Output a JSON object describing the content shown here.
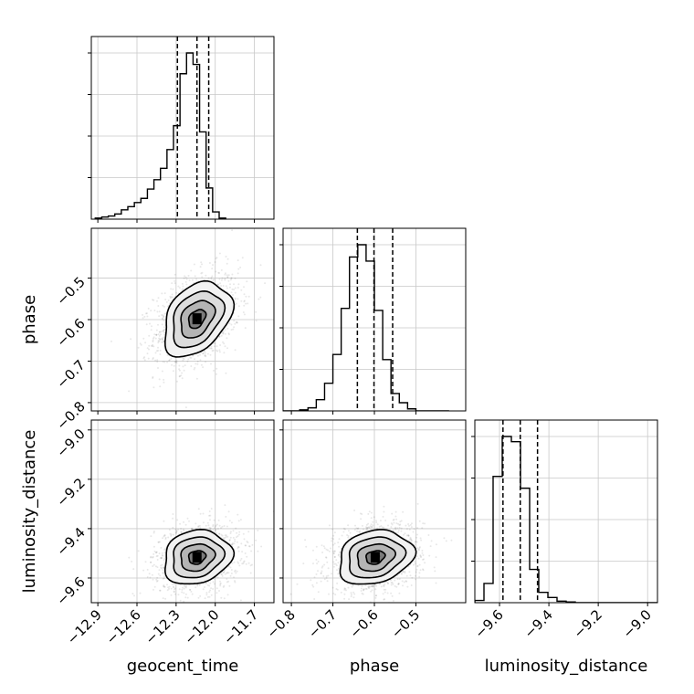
{
  "chart_data": {
    "type": "corner",
    "parameters": [
      "geocent_time",
      "phase",
      "luminosity_distance"
    ],
    "axis_labels": [
      "geocent_time",
      "phase",
      "luminosity_distance"
    ],
    "ranges": {
      "geocent_time": [
        -12.95,
        -11.55
      ],
      "phase": [
        -0.82,
        -0.38
      ],
      "luminosity_distance": [
        -9.7,
        -8.96
      ]
    },
    "ticks": {
      "geocent_time": [
        -12.9,
        -12.6,
        -12.3,
        -12.0,
        -11.7
      ],
      "phase": [
        -0.8,
        -0.7,
        -0.6,
        -0.5
      ],
      "luminosity_distance": [
        -9.6,
        -9.4,
        -9.2,
        -9.0
      ]
    },
    "tick_labels": {
      "geocent_time": [
        "−12.9",
        "−12.6",
        "−12.3",
        "−12.0",
        "−11.7"
      ],
      "phase": [
        "−0.8",
        "−0.7",
        "−0.6",
        "−0.5"
      ],
      "luminosity_distance": [
        "−9.6",
        "−9.4",
        "−9.2",
        "−9.0"
      ]
    },
    "histograms": {
      "geocent_time": {
        "bin_start": -12.92,
        "bin_width": 0.05,
        "counts": [
          1,
          2,
          3,
          5,
          9,
          12,
          16,
          20,
          29,
          38,
          49,
          67,
          90,
          140,
          160,
          149,
          84,
          30,
          7,
          1
        ]
      },
      "phase": {
        "bin_start": -0.82,
        "bin_width": 0.02,
        "counts": [
          0,
          0,
          1,
          3,
          11,
          27,
          55,
          100,
          150,
          162,
          146,
          98,
          50,
          17,
          8,
          2,
          0,
          0,
          0,
          0
        ]
      },
      "luminosity_distance": {
        "bin_start": -9.7,
        "bin_width": 0.037,
        "counts": [
          3,
          26,
          171,
          225,
          218,
          155,
          45,
          14,
          7,
          2,
          1,
          0,
          0,
          0,
          0,
          0,
          0,
          0,
          0,
          0
        ]
      }
    },
    "quantiles": {
      "geocent_time": [
        -12.29,
        -12.14,
        -12.05
      ],
      "phase": [
        -0.641,
        -0.601,
        -0.556
      ],
      "luminosity_distance": [
        -9.586,
        -9.516,
        -9.446
      ]
    },
    "joint": [
      {
        "x": "geocent_time",
        "y": "phase",
        "mean": [
          -12.14,
          -0.598
        ],
        "sd": [
          0.13,
          0.045
        ],
        "rho": 0.35
      },
      {
        "x": "geocent_time",
        "y": "luminosity_distance",
        "mean": [
          -12.14,
          -9.516
        ],
        "sd": [
          0.13,
          0.055
        ],
        "rho": 0.15
      },
      {
        "x": "phase",
        "y": "luminosity_distance",
        "mean": [
          -0.598,
          -9.516
        ],
        "sd": [
          0.045,
          0.055
        ],
        "rho": 0.2
      }
    ],
    "contour_levels_sigma": [
      0.5,
      1.0,
      1.5,
      2.0
    ],
    "grid": true
  }
}
